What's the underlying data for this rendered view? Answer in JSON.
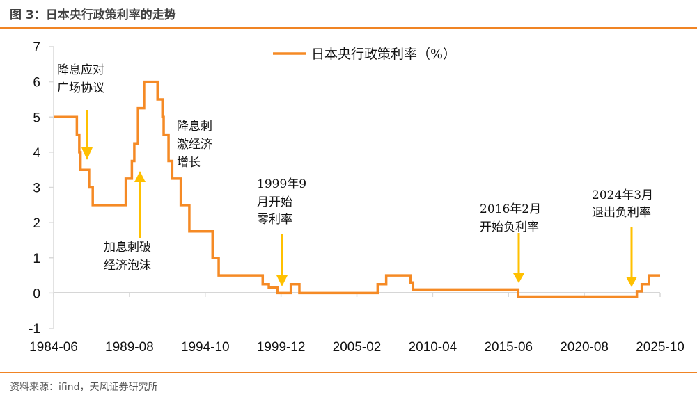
{
  "figure": {
    "title": "图 3：日本央行政策利率的走势",
    "source": "资料来源：ifind，天风证券研究所"
  },
  "colors": {
    "series": "#f58a25",
    "arrow": "#ffc000",
    "rule": "#f08424",
    "axis": "#d9d9d9"
  },
  "legend": {
    "label": "日本央行政策利率（%）"
  },
  "annotations": [
    {
      "lines": [
        "降息应对",
        "广场协议"
      ],
      "arrow": "down"
    },
    {
      "lines": [
        "加息刺破",
        "经济泡沫"
      ],
      "arrow": "up"
    },
    {
      "lines": [
        "降息刺",
        "激经济",
        "增长"
      ],
      "arrow": "none"
    },
    {
      "lines": [
        "1999年9",
        "月开始",
        "零利率"
      ],
      "arrow": "down"
    },
    {
      "lines": [
        "2016年2月",
        "开始负利率"
      ],
      "arrow": "down"
    },
    {
      "lines": [
        "2024年3月",
        "退出负利率"
      ],
      "arrow": "down"
    }
  ],
  "chart_data": {
    "type": "line",
    "step": true,
    "title": "图 3：日本央行政策利率的走势",
    "xlabel": "",
    "ylabel": "",
    "ylim": [
      -1,
      7
    ],
    "yticks": [
      "7",
      "6",
      "5",
      "4",
      "3",
      "2",
      "1",
      "0",
      "-1"
    ],
    "xticks": [
      "1984-06",
      "1989-08",
      "1994-10",
      "1999-12",
      "2005-02",
      "2010-04",
      "2015-06",
      "2020-08",
      "2025-10"
    ],
    "grid": false,
    "legend_position": "top",
    "series": [
      {
        "name": "日本央行政策利率（%）",
        "points": [
          [
            "1984-06",
            5.0
          ],
          [
            "1986-01",
            4.5
          ],
          [
            "1986-03",
            4.0
          ],
          [
            "1986-04",
            3.5
          ],
          [
            "1986-11",
            3.0
          ],
          [
            "1987-02",
            2.5
          ],
          [
            "1989-05",
            3.25
          ],
          [
            "1989-10",
            3.75
          ],
          [
            "1989-12",
            4.25
          ],
          [
            "1990-03",
            5.25
          ],
          [
            "1990-08",
            6.0
          ],
          [
            "1991-07",
            5.5
          ],
          [
            "1991-11",
            5.0
          ],
          [
            "1991-12",
            4.5
          ],
          [
            "1992-04",
            3.75
          ],
          [
            "1992-07",
            3.25
          ],
          [
            "1993-02",
            2.5
          ],
          [
            "1993-09",
            1.75
          ],
          [
            "1995-04",
            1.0
          ],
          [
            "1995-09",
            0.5
          ],
          [
            "1998-09",
            0.25
          ],
          [
            "1999-02",
            0.15
          ],
          [
            "1999-09",
            0.0
          ],
          [
            "2000-08",
            0.25
          ],
          [
            "2001-03",
            0.0
          ],
          [
            "2006-07",
            0.25
          ],
          [
            "2007-02",
            0.5
          ],
          [
            "2008-10",
            0.3
          ],
          [
            "2008-12",
            0.1
          ],
          [
            "2016-02",
            -0.1
          ],
          [
            "2024-03",
            0.05
          ],
          [
            "2024-07",
            0.25
          ],
          [
            "2025-01",
            0.5
          ],
          [
            "2025-10",
            0.5
          ]
        ]
      }
    ]
  }
}
